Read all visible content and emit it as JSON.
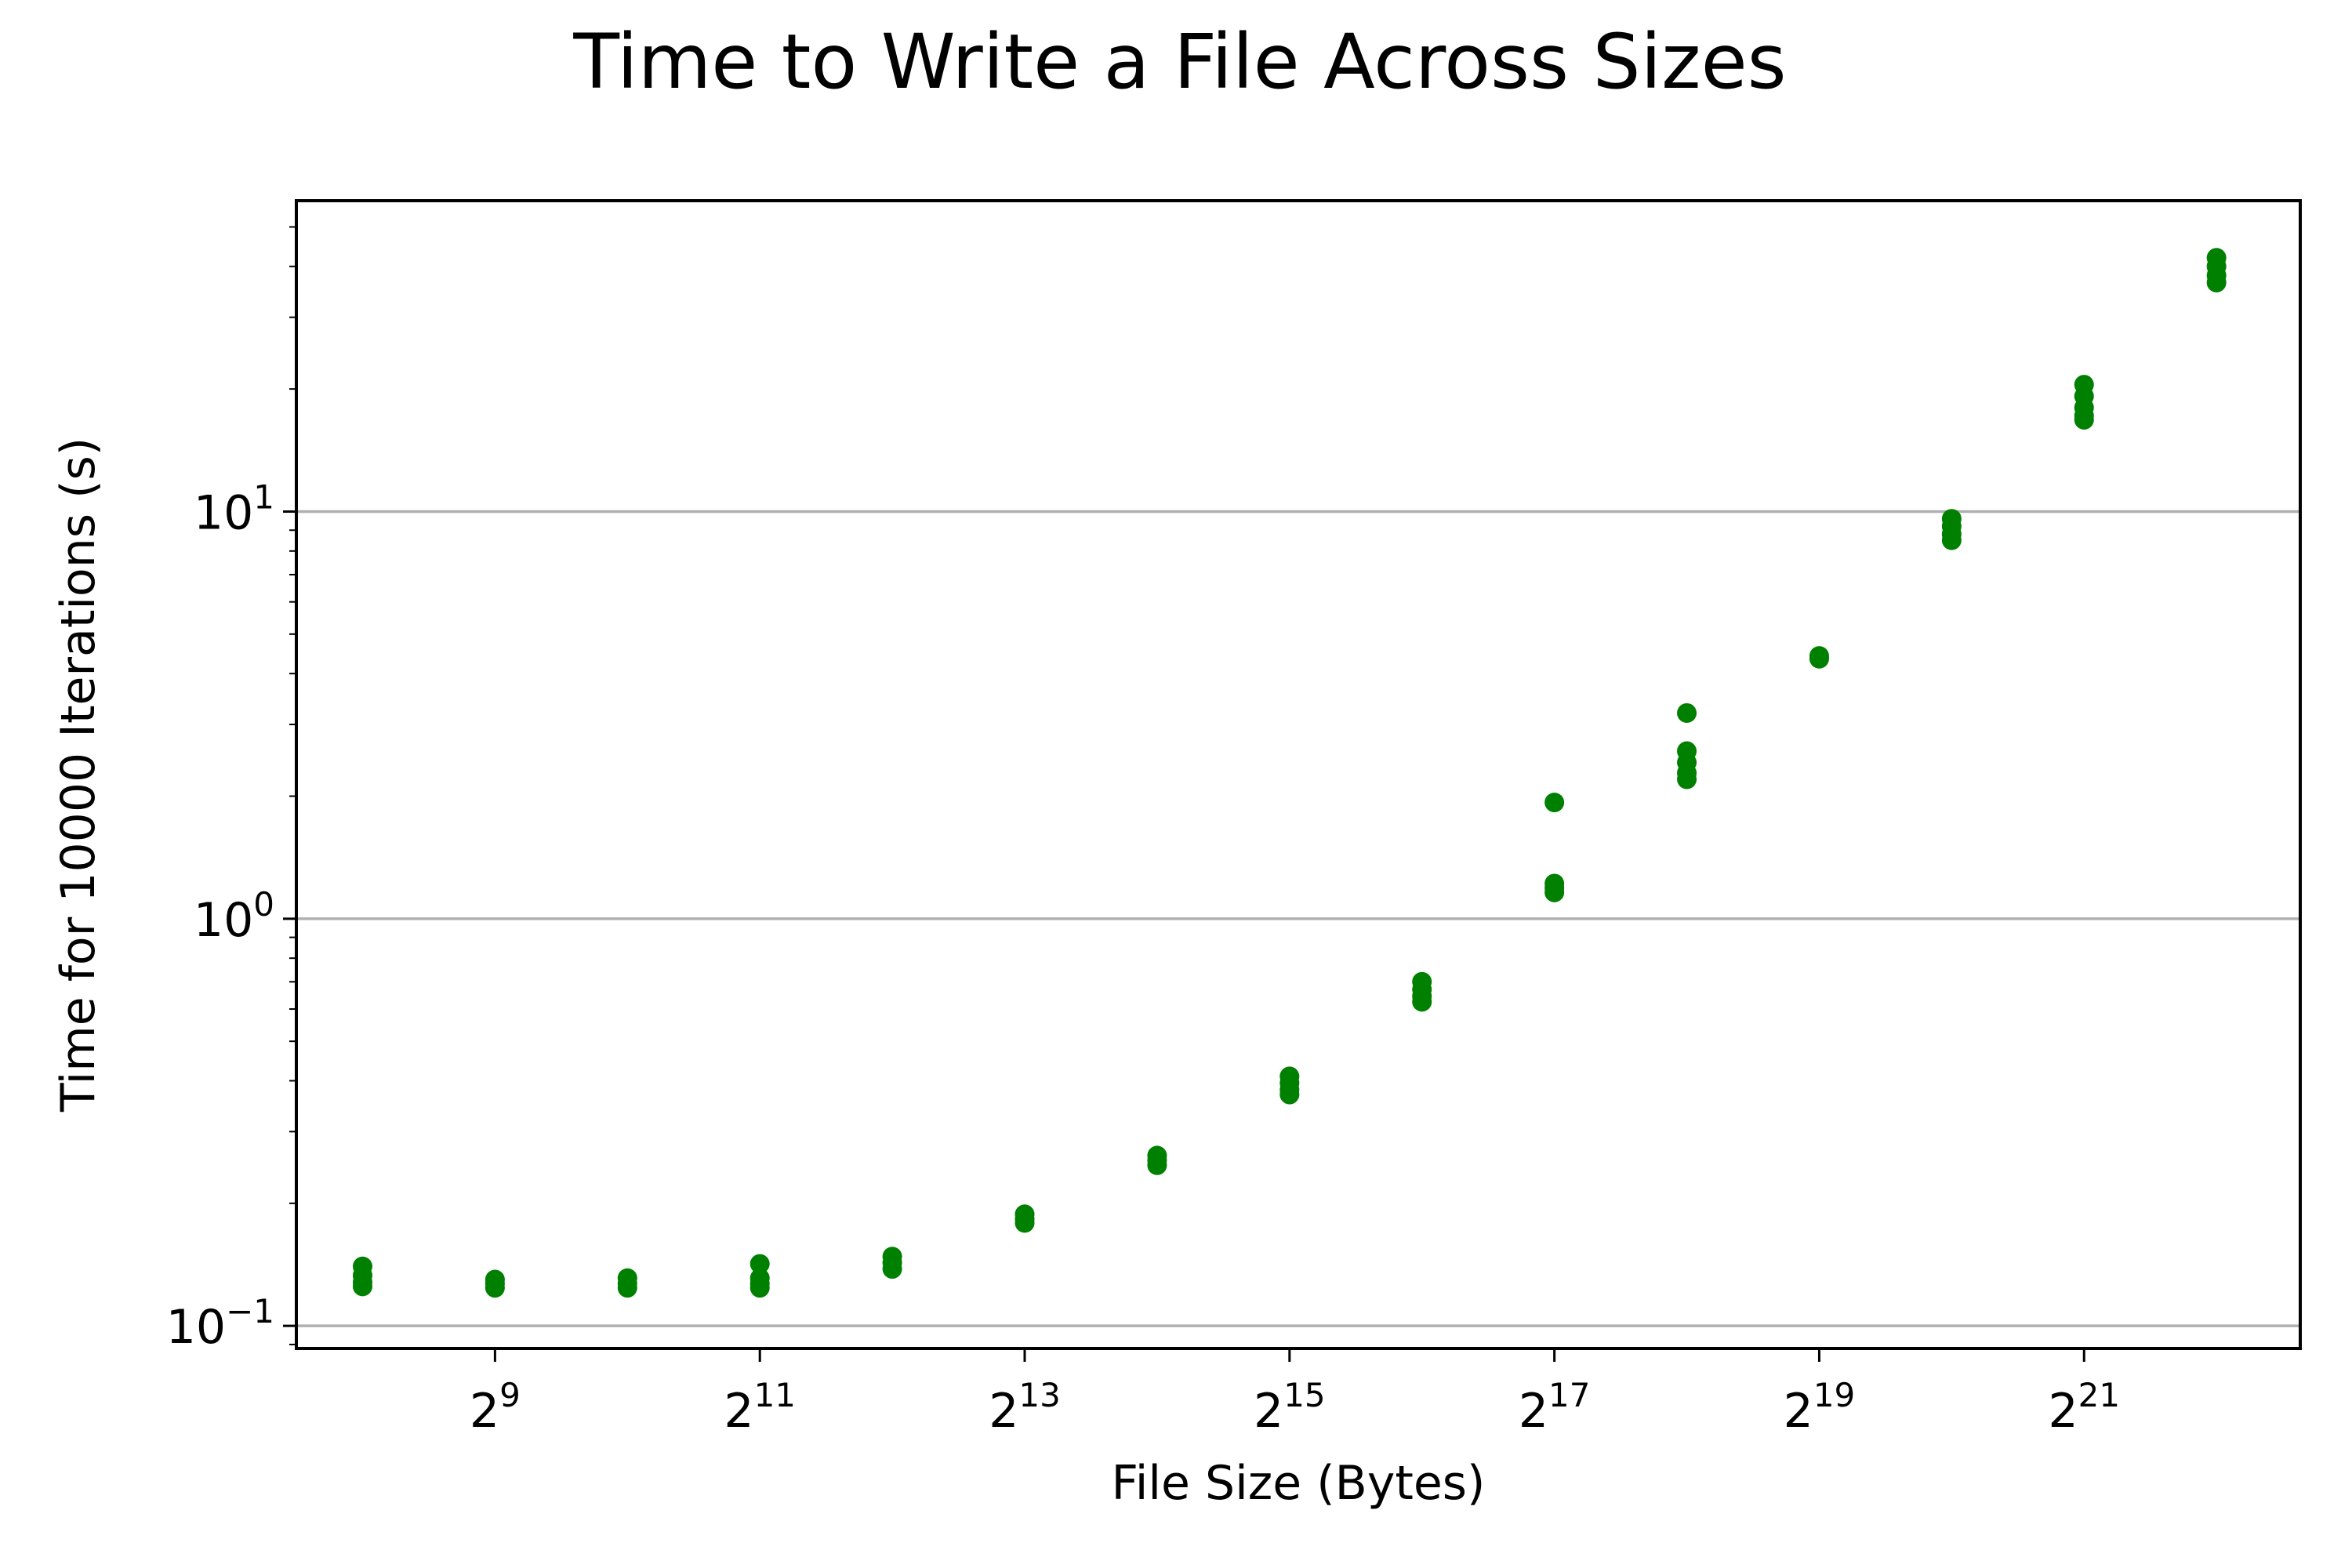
{
  "chart_data": {
    "type": "scatter",
    "title": "Time to Write a File Across Sizes",
    "xlabel": "File Size (Bytes)",
    "ylabel": "Time for 10000 Iterations (s)",
    "x_scale": "log2",
    "y_scale": "log10",
    "xlim": [
      181,
      6502000
    ],
    "ylim": [
      0.088,
      58
    ],
    "x_ticks": [
      {
        "base": "2",
        "exp": "9",
        "value": 512
      },
      {
        "base": "2",
        "exp": "11",
        "value": 2048
      },
      {
        "base": "2",
        "exp": "13",
        "value": 8192
      },
      {
        "base": "2",
        "exp": "15",
        "value": 32768
      },
      {
        "base": "2",
        "exp": "17",
        "value": 131072
      },
      {
        "base": "2",
        "exp": "19",
        "value": 524288
      },
      {
        "base": "2",
        "exp": "21",
        "value": 2097152
      }
    ],
    "y_ticks": [
      {
        "base": "10",
        "exp": "−1",
        "value": 0.1
      },
      {
        "base": "10",
        "exp": "0",
        "value": 1
      },
      {
        "base": "10",
        "exp": "1",
        "value": 10
      }
    ],
    "grid": "y-major",
    "marker_color": "#008000",
    "grid_color": "#b0b0b0",
    "series": [
      {
        "points": [
          {
            "x": 256,
            "y": 0.14
          },
          {
            "x": 256,
            "y": 0.133
          },
          {
            "x": 256,
            "y": 0.128
          },
          {
            "x": 256,
            "y": 0.125
          },
          {
            "x": 512,
            "y": 0.13
          },
          {
            "x": 512,
            "y": 0.127
          },
          {
            "x": 512,
            "y": 0.124
          },
          {
            "x": 1024,
            "y": 0.131
          },
          {
            "x": 1024,
            "y": 0.127
          },
          {
            "x": 1024,
            "y": 0.124
          },
          {
            "x": 2048,
            "y": 0.142
          },
          {
            "x": 2048,
            "y": 0.131
          },
          {
            "x": 2048,
            "y": 0.127
          },
          {
            "x": 2048,
            "y": 0.124
          },
          {
            "x": 4096,
            "y": 0.148
          },
          {
            "x": 4096,
            "y": 0.143
          },
          {
            "x": 4096,
            "y": 0.138
          },
          {
            "x": 8192,
            "y": 0.188
          },
          {
            "x": 8192,
            "y": 0.183
          },
          {
            "x": 8192,
            "y": 0.179
          },
          {
            "x": 16384,
            "y": 0.262
          },
          {
            "x": 16384,
            "y": 0.255
          },
          {
            "x": 16384,
            "y": 0.248
          },
          {
            "x": 32768,
            "y": 0.41
          },
          {
            "x": 32768,
            "y": 0.395
          },
          {
            "x": 32768,
            "y": 0.38
          },
          {
            "x": 32768,
            "y": 0.37
          },
          {
            "x": 65536,
            "y": 0.7
          },
          {
            "x": 65536,
            "y": 0.67
          },
          {
            "x": 65536,
            "y": 0.645
          },
          {
            "x": 65536,
            "y": 0.625
          },
          {
            "x": 131072,
            "y": 1.93
          },
          {
            "x": 131072,
            "y": 1.22
          },
          {
            "x": 131072,
            "y": 1.19
          },
          {
            "x": 131072,
            "y": 1.16
          },
          {
            "x": 262144,
            "y": 3.2
          },
          {
            "x": 262144,
            "y": 2.58
          },
          {
            "x": 262144,
            "y": 2.42
          },
          {
            "x": 262144,
            "y": 2.28
          },
          {
            "x": 262144,
            "y": 2.2
          },
          {
            "x": 524288,
            "y": 4.42
          },
          {
            "x": 524288,
            "y": 4.35
          },
          {
            "x": 1048576,
            "y": 9.6
          },
          {
            "x": 1048576,
            "y": 9.2
          },
          {
            "x": 1048576,
            "y": 8.8
          },
          {
            "x": 1048576,
            "y": 8.5
          },
          {
            "x": 2097152,
            "y": 20.5
          },
          {
            "x": 2097152,
            "y": 19.2
          },
          {
            "x": 2097152,
            "y": 18.0
          },
          {
            "x": 2097152,
            "y": 17.2
          },
          {
            "x": 2097152,
            "y": 16.8
          },
          {
            "x": 4194304,
            "y": 42.0
          },
          {
            "x": 4194304,
            "y": 40.0
          },
          {
            "x": 4194304,
            "y": 38.0
          },
          {
            "x": 4194304,
            "y": 36.5
          }
        ]
      }
    ]
  }
}
